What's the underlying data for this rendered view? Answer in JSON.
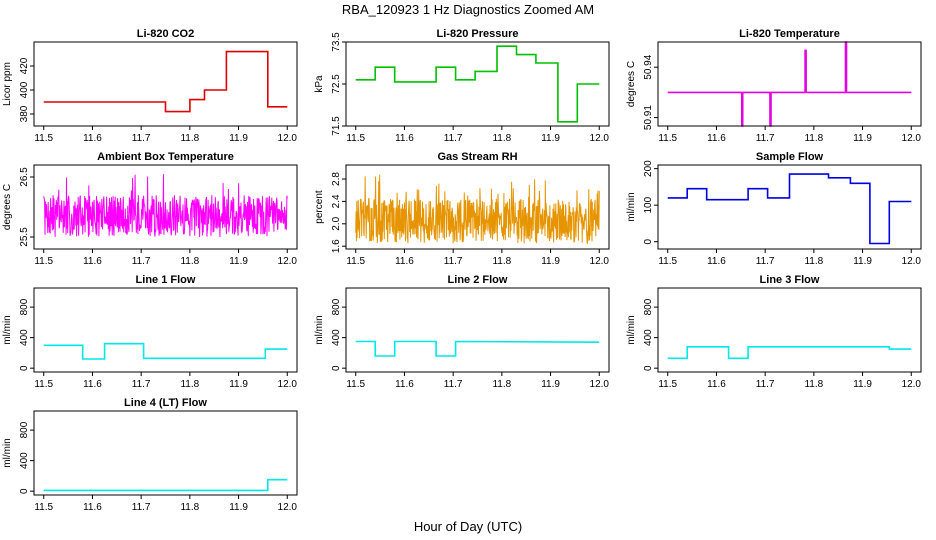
{
  "figure": {
    "title": "RBA_120923  1 Hz Diagnostics Zoomed AM",
    "xlabel": "Hour of Day (UTC)"
  },
  "chart_data": [
    {
      "type": "line",
      "title": "Li-820 CO2",
      "xlabel": "",
      "ylabel": "Licor ppm",
      "color": "#e00000",
      "xlim": [
        11.5,
        12.0
      ],
      "ylim": [
        370,
        440
      ],
      "xticks": [
        11.5,
        11.6,
        11.7,
        11.8,
        11.9,
        12.0
      ],
      "yticks": [
        380,
        400,
        420
      ],
      "ytick_labels": [
        "380",
        "400",
        "420"
      ],
      "style": "step",
      "series": [
        {
          "x": [
            11.5,
            11.75,
            11.75,
            11.8,
            11.8,
            11.83,
            11.83,
            11.875,
            11.875,
            11.96,
            11.96,
            12.0
          ],
          "y": [
            390,
            390,
            382,
            382,
            392,
            392,
            400,
            400,
            432,
            432,
            386,
            386
          ]
        }
      ]
    },
    {
      "type": "line",
      "title": "Li-820 Pressure",
      "xlabel": "",
      "ylabel": "kPa",
      "color": "#00c000",
      "xlim": [
        11.5,
        12.0
      ],
      "ylim": [
        71.5,
        73.5
      ],
      "xticks": [
        11.5,
        11.6,
        11.7,
        11.8,
        11.9,
        12.0
      ],
      "yticks": [
        71.5,
        72.5,
        73.5
      ],
      "ytick_labels": [
        "71.5",
        "72.5",
        "73.5"
      ],
      "style": "step",
      "series": [
        {
          "x": [
            11.5,
            11.54,
            11.54,
            11.58,
            11.58,
            11.665,
            11.665,
            11.705,
            11.705,
            11.745,
            11.745,
            11.79,
            11.79,
            11.83,
            11.83,
            11.87,
            11.87,
            11.915,
            11.915,
            11.955,
            11.955,
            12.0
          ],
          "y": [
            72.6,
            72.6,
            72.9,
            72.9,
            72.55,
            72.55,
            72.9,
            72.9,
            72.6,
            72.6,
            72.8,
            72.8,
            73.4,
            73.4,
            73.2,
            73.2,
            73.0,
            73.0,
            71.6,
            71.6,
            72.5,
            72.5
          ]
        }
      ]
    },
    {
      "type": "line",
      "title": "Li-820 Temperature",
      "xlabel": "",
      "ylabel": "degrees C",
      "color": "#e000e0",
      "xlim": [
        11.5,
        12.0
      ],
      "ylim": [
        50.905,
        50.955
      ],
      "xticks": [
        11.5,
        11.6,
        11.7,
        11.8,
        11.9,
        12.0
      ],
      "yticks": [
        50.91,
        50.94
      ],
      "ytick_labels": [
        "50.91",
        "50.94"
      ],
      "style": "step",
      "series": [
        {
          "x": [
            11.5,
            11.652,
            11.652,
            11.654,
            11.654,
            11.71,
            11.71,
            11.712,
            11.712,
            11.782,
            11.782,
            11.784,
            11.784,
            11.865,
            11.865,
            11.867,
            11.867,
            12.0
          ],
          "y": [
            50.925,
            50.925,
            50.905,
            50.905,
            50.925,
            50.925,
            50.905,
            50.905,
            50.925,
            50.925,
            50.95,
            50.95,
            50.925,
            50.925,
            50.955,
            50.955,
            50.925,
            50.925
          ]
        }
      ]
    },
    {
      "type": "line",
      "title": "Ambient Box Temperature",
      "xlabel": "",
      "ylabel": "degrees C",
      "color": "#ff00ff",
      "xlim": [
        11.5,
        12.0
      ],
      "ylim": [
        25.3,
        26.7
      ],
      "xticks": [
        11.5,
        11.6,
        11.7,
        11.8,
        11.9,
        12.0
      ],
      "yticks": [
        25.5,
        26.5
      ],
      "ytick_labels": [
        "25.5",
        "26.5"
      ],
      "style": "noise",
      "noise": {
        "base": 25.85,
        "amp": 0.35,
        "min": 25.3,
        "max": 26.65,
        "n": 600,
        "seed": 7
      }
    },
    {
      "type": "line",
      "title": "Gas Stream RH",
      "xlabel": "",
      "ylabel": "percent",
      "color": "#e69500",
      "xlim": [
        11.5,
        12.0
      ],
      "ylim": [
        1.55,
        3.05
      ],
      "xticks": [
        11.5,
        11.6,
        11.7,
        11.8,
        11.9,
        12.0
      ],
      "yticks": [
        1.6,
        2.0,
        2.4,
        2.8
      ],
      "ytick_labels": [
        "1.6",
        "2.0",
        "2.4",
        "2.8"
      ],
      "style": "noise",
      "noise": {
        "base": 2.05,
        "amp": 0.4,
        "min": 1.6,
        "max": 3.0,
        "n": 700,
        "seed": 13
      }
    },
    {
      "type": "line",
      "title": "Sample Flow",
      "xlabel": "",
      "ylabel": "ml/min",
      "color": "#0000e0",
      "xlim": [
        11.5,
        12.0
      ],
      "ylim": [
        -20,
        210
      ],
      "xticks": [
        11.5,
        11.6,
        11.7,
        11.8,
        11.9,
        12.0
      ],
      "yticks": [
        0,
        100,
        200
      ],
      "ytick_labels": [
        "0",
        "100",
        "200"
      ],
      "style": "step",
      "series": [
        {
          "x": [
            11.5,
            11.54,
            11.54,
            11.58,
            11.58,
            11.665,
            11.665,
            11.705,
            11.705,
            11.75,
            11.75,
            11.83,
            11.83,
            11.875,
            11.875,
            11.915,
            11.915,
            11.955,
            11.955,
            12.0
          ],
          "y": [
            120,
            120,
            145,
            145,
            115,
            115,
            145,
            145,
            120,
            120,
            185,
            185,
            175,
            175,
            160,
            160,
            -5,
            -5,
            110,
            110
          ]
        }
      ]
    },
    {
      "type": "line",
      "title": "Line 1 Flow",
      "xlabel": "",
      "ylabel": "ml/min",
      "color": "#00e8e8",
      "xlim": [
        11.5,
        12.0
      ],
      "ylim": [
        -50,
        1050
      ],
      "xticks": [
        11.5,
        11.6,
        11.7,
        11.8,
        11.9,
        12.0
      ],
      "yticks": [
        0,
        400,
        800
      ],
      "ytick_labels": [
        "0",
        "400",
        "800"
      ],
      "style": "step",
      "series": [
        {
          "x": [
            11.5,
            11.58,
            11.58,
            11.625,
            11.625,
            11.705,
            11.705,
            11.955,
            11.955,
            12.0
          ],
          "y": [
            300,
            300,
            120,
            120,
            320,
            320,
            130,
            130,
            250,
            250
          ]
        }
      ]
    },
    {
      "type": "line",
      "title": "Line 2 Flow",
      "xlabel": "",
      "ylabel": "ml/min",
      "color": "#00e8e8",
      "xlim": [
        11.5,
        12.0
      ],
      "ylim": [
        -50,
        1050
      ],
      "xticks": [
        11.5,
        11.6,
        11.7,
        11.8,
        11.9,
        12.0
      ],
      "yticks": [
        0,
        400,
        800
      ],
      "ytick_labels": [
        "0",
        "400",
        "800"
      ],
      "style": "step",
      "series": [
        {
          "x": [
            11.5,
            11.54,
            11.54,
            11.58,
            11.58,
            11.665,
            11.665,
            11.705,
            11.705,
            12.0
          ],
          "y": [
            350,
            350,
            160,
            160,
            350,
            350,
            160,
            160,
            350,
            340
          ]
        }
      ]
    },
    {
      "type": "line",
      "title": "Line 3 Flow",
      "xlabel": "",
      "ylabel": "ml/min",
      "color": "#00e8e8",
      "xlim": [
        11.5,
        12.0
      ],
      "ylim": [
        -50,
        1050
      ],
      "xticks": [
        11.5,
        11.6,
        11.7,
        11.8,
        11.9,
        12.0
      ],
      "yticks": [
        0,
        400,
        800
      ],
      "ytick_labels": [
        "0",
        "400",
        "800"
      ],
      "style": "step",
      "series": [
        {
          "x": [
            11.5,
            11.54,
            11.54,
            11.625,
            11.625,
            11.665,
            11.665,
            11.955,
            11.955,
            12.0
          ],
          "y": [
            130,
            130,
            280,
            280,
            130,
            130,
            280,
            280,
            250,
            250
          ]
        }
      ]
    },
    {
      "type": "line",
      "title": "Line 4 (LT) Flow",
      "xlabel": "",
      "ylabel": "ml/min",
      "color": "#00e8e8",
      "xlim": [
        11.5,
        12.0
      ],
      "ylim": [
        -50,
        1050
      ],
      "xticks": [
        11.5,
        11.6,
        11.7,
        11.8,
        11.9,
        12.0
      ],
      "yticks": [
        0,
        400,
        800
      ],
      "ytick_labels": [
        "0",
        "400",
        "800"
      ],
      "style": "step",
      "series": [
        {
          "x": [
            11.5,
            11.96,
            11.96,
            12.0
          ],
          "y": [
            10,
            10,
            150,
            150
          ]
        }
      ]
    }
  ]
}
